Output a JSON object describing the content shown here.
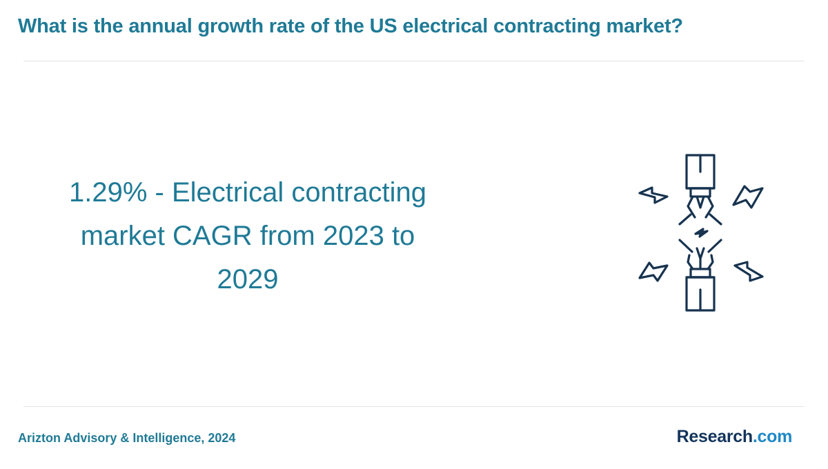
{
  "header": {
    "title": "What is the annual growth rate of the US electrical contracting market?"
  },
  "main": {
    "statement": "1.29% - Electrical contracting market CAGR from 2023 to 2029",
    "illustration_icon": "broken-cable-spark-icon"
  },
  "footer": {
    "source": "Arizton Advisory & Intelligence, 2024",
    "brand_main": "Research",
    "brand_tld": ".com"
  },
  "colors": {
    "accent": "#1f7a96",
    "icon_stroke": "#17334f",
    "brand_dark": "#13345c",
    "brand_light": "#1e88c8",
    "divider": "#e3e3e3"
  }
}
